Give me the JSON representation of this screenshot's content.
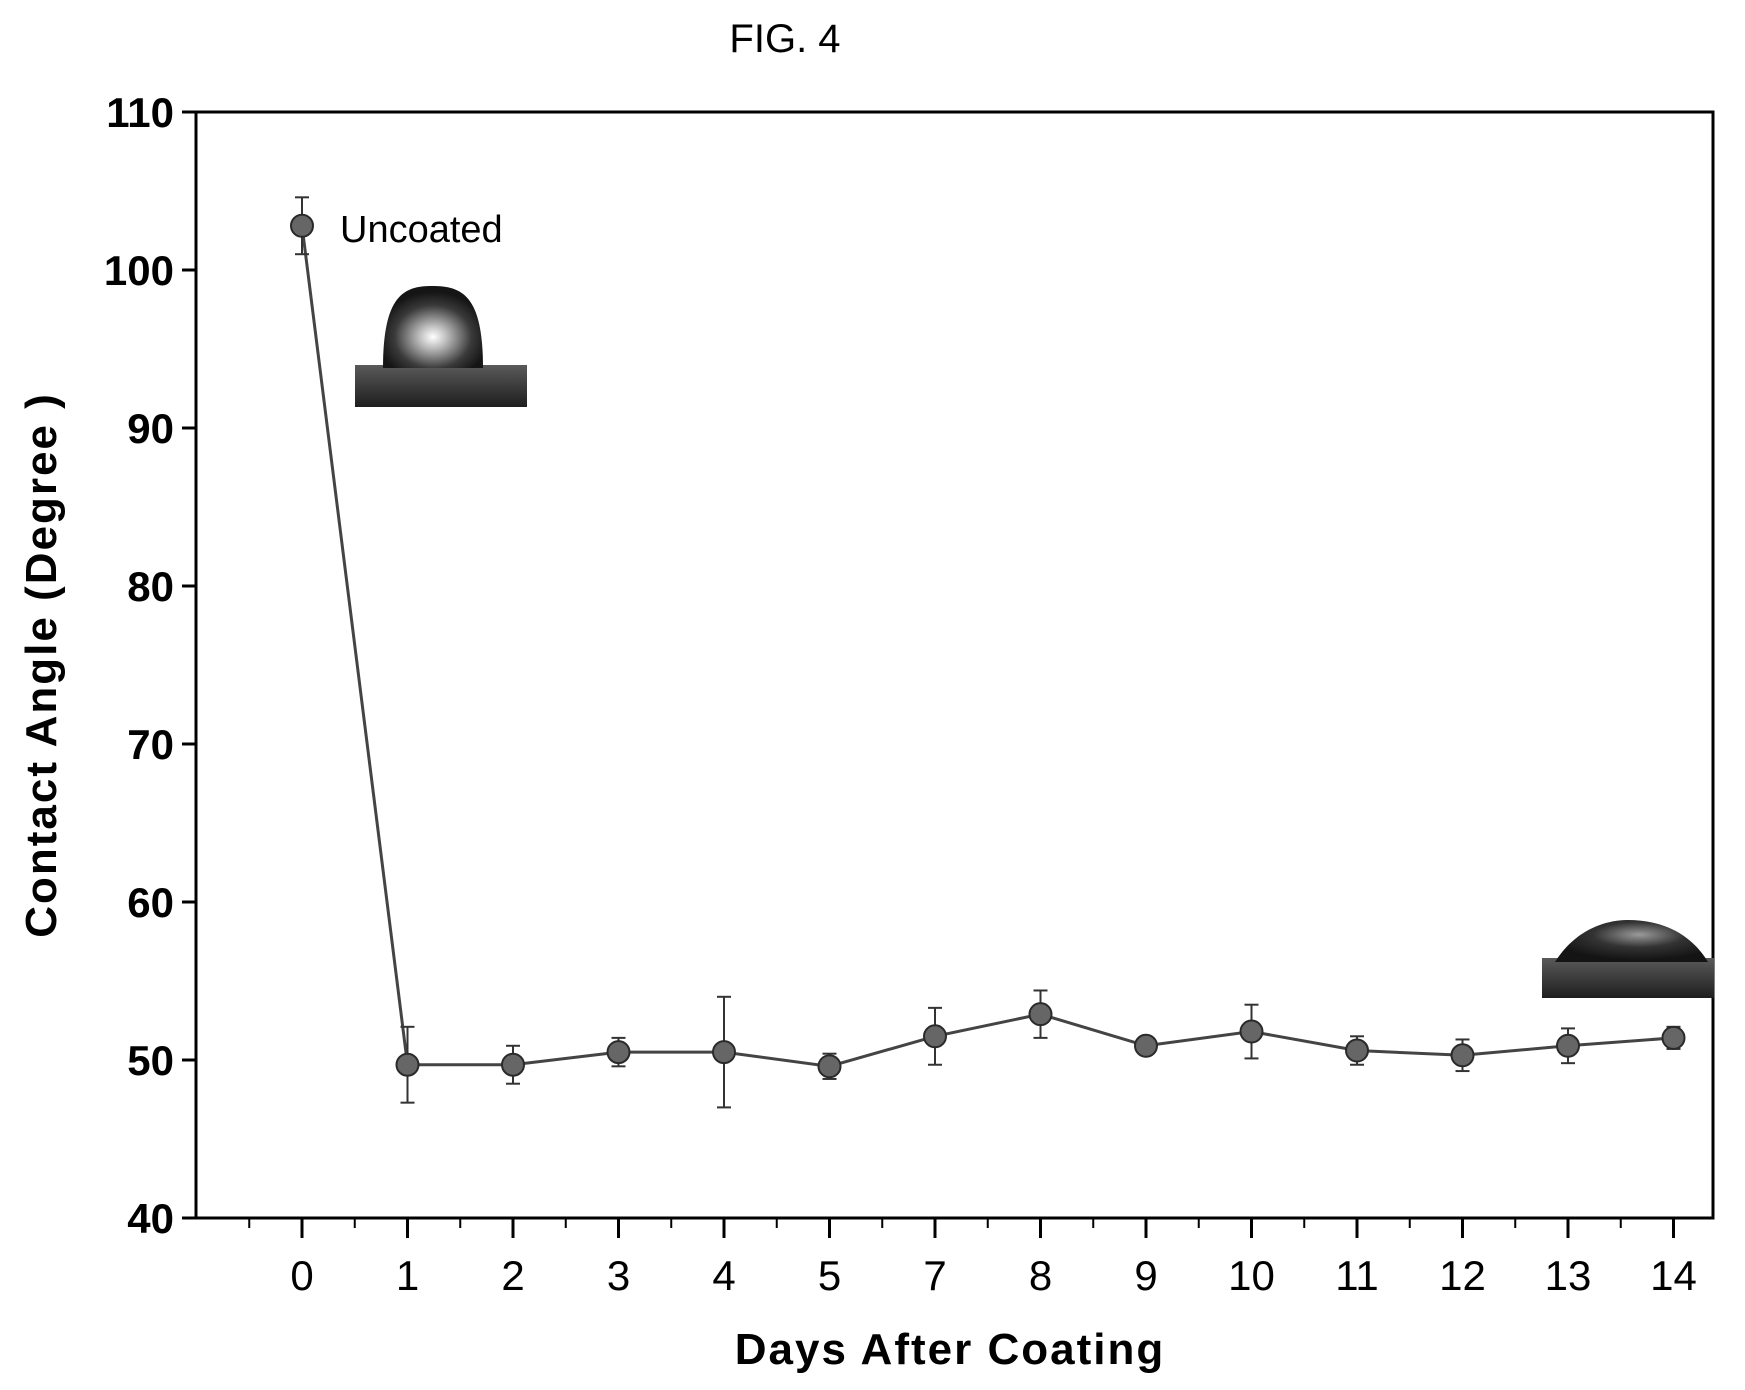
{
  "figure_label": "FIG. 4",
  "chart_data": {
    "type": "line",
    "xlabel": "Days After Coating",
    "ylabel": "Contact Angle (Degree )",
    "categories": [
      "0",
      "1",
      "2",
      "3",
      "4",
      "5",
      "7",
      "8",
      "9",
      "10",
      "11",
      "12",
      "13",
      "14"
    ],
    "ylim": [
      40,
      110
    ],
    "yticks": [
      40,
      50,
      60,
      70,
      80,
      90,
      100,
      110
    ],
    "grid": false,
    "series": [
      {
        "values": [
          102.8,
          49.7,
          49.7,
          50.5,
          50.5,
          49.6,
          51.5,
          52.9,
          50.9,
          51.8,
          50.6,
          50.3,
          50.9,
          51.4
        ],
        "errors": [
          1.8,
          2.4,
          1.2,
          0.9,
          3.5,
          0.8,
          1.8,
          1.5,
          0.4,
          1.7,
          0.9,
          1.0,
          1.1,
          0.7
        ],
        "color": "#444444"
      }
    ],
    "annotations": [
      {
        "text": "Uncoated",
        "category": "0",
        "y": 102.8
      }
    ]
  }
}
